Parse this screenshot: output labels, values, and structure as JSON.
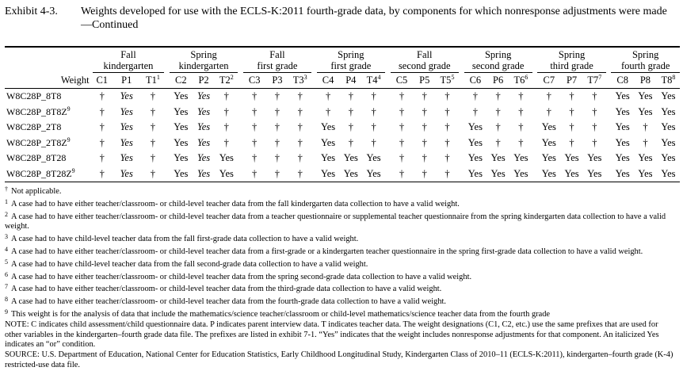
{
  "caption": {
    "exhibit": "Exhibit 4-3.",
    "title": "Weights developed for use with the ECLS-K:2011 fourth-grade data, by components for which nonresponse adjustments were made—Continued"
  },
  "groups": [
    {
      "line1": "Fall",
      "line2": "kindergarten"
    },
    {
      "line1": "Spring",
      "line2": "kindergarten"
    },
    {
      "line1": "Fall",
      "line2": "first grade"
    },
    {
      "line1": "Spring",
      "line2": "first grade"
    },
    {
      "line1": "Fall",
      "line2": "second grade"
    },
    {
      "line1": "Spring",
      "line2": "second grade"
    },
    {
      "line1": "Spring",
      "line2": "third grade"
    },
    {
      "line1": "Spring",
      "line2": "fourth grade"
    }
  ],
  "weight_label": "Weight",
  "sub_headers": [
    {
      "t": "C1",
      "sup": ""
    },
    {
      "t": "P1",
      "sup": ""
    },
    {
      "t": "T1",
      "sup": "1"
    },
    {
      "t": "C2",
      "sup": ""
    },
    {
      "t": "P2",
      "sup": ""
    },
    {
      "t": "T2",
      "sup": "2"
    },
    {
      "t": "C3",
      "sup": ""
    },
    {
      "t": "P3",
      "sup": ""
    },
    {
      "t": "T3",
      "sup": "3"
    },
    {
      "t": "C4",
      "sup": ""
    },
    {
      "t": "P4",
      "sup": ""
    },
    {
      "t": "T4",
      "sup": "4"
    },
    {
      "t": "C5",
      "sup": ""
    },
    {
      "t": "P5",
      "sup": ""
    },
    {
      "t": "T5",
      "sup": "5"
    },
    {
      "t": "C6",
      "sup": ""
    },
    {
      "t": "P6",
      "sup": ""
    },
    {
      "t": "T6",
      "sup": "6"
    },
    {
      "t": "C7",
      "sup": ""
    },
    {
      "t": "P7",
      "sup": ""
    },
    {
      "t": "T7",
      "sup": "7"
    },
    {
      "t": "C8",
      "sup": ""
    },
    {
      "t": "P8",
      "sup": ""
    },
    {
      "t": "T8",
      "sup": "8"
    }
  ],
  "rows": [
    {
      "name": "W8C28P_8T8",
      "sup": "",
      "cells": [
        "†",
        "Yes",
        "†",
        "Yes",
        "Yes",
        "†",
        "†",
        "†",
        "†",
        "†",
        "†",
        "†",
        "†",
        "†",
        "†",
        "†",
        "†",
        "†",
        "†",
        "†",
        "†",
        "Yes",
        "Yes",
        "Yes"
      ]
    },
    {
      "name": "W8C28P_8T8Z",
      "sup": "9",
      "cells": [
        "†",
        "Yes",
        "†",
        "Yes",
        "Yes",
        "†",
        "†",
        "†",
        "†",
        "†",
        "†",
        "†",
        "†",
        "†",
        "†",
        "†",
        "†",
        "†",
        "†",
        "†",
        "†",
        "Yes",
        "Yes",
        "Yes"
      ]
    },
    {
      "name": "W8C28P_2T8",
      "sup": "",
      "cells": [
        "†",
        "Yes",
        "†",
        "Yes",
        "Yes",
        "†",
        "†",
        "†",
        "†",
        "Yes",
        "†",
        "†",
        "†",
        "†",
        "†",
        "Yes",
        "†",
        "†",
        "Yes",
        "†",
        "†",
        "Yes",
        "†",
        "Yes"
      ]
    },
    {
      "name": "W8C28P_2T8Z",
      "sup": "9",
      "cells": [
        "†",
        "Yes",
        "†",
        "Yes",
        "Yes",
        "†",
        "†",
        "†",
        "†",
        "Yes",
        "†",
        "†",
        "†",
        "†",
        "†",
        "Yes",
        "†",
        "†",
        "Yes",
        "†",
        "†",
        "Yes",
        "†",
        "Yes"
      ]
    },
    {
      "name": "W8C28P_8T28",
      "sup": "",
      "cells": [
        "†",
        "Yes",
        "†",
        "Yes",
        "Yes",
        "Yes",
        "†",
        "†",
        "†",
        "Yes",
        "Yes",
        "Yes",
        "†",
        "†",
        "†",
        "Yes",
        "Yes",
        "Yes",
        "Yes",
        "Yes",
        "Yes",
        "Yes",
        "Yes",
        "Yes"
      ]
    },
    {
      "name": "W8C28P_8T28Z",
      "sup": "9",
      "cells": [
        "†",
        "Yes",
        "†",
        "Yes",
        "Yes",
        "Yes",
        "†",
        "†",
        "†",
        "Yes",
        "Yes",
        "Yes",
        "†",
        "†",
        "†",
        "Yes",
        "Yes",
        "Yes",
        "Yes",
        "Yes",
        "Yes",
        "Yes",
        "Yes",
        "Yes"
      ]
    }
  ],
  "italic_rule": {
    "C1": false,
    "P1": true,
    "P2": true,
    "C2": false
  },
  "notes": [
    {
      "mark": "†",
      "text": "Not applicable."
    },
    {
      "mark": "1",
      "text": "A case had to have either teacher/classroom- or child-level teacher data from the fall kindergarten data collection to have a valid weight."
    },
    {
      "mark": "2",
      "text": "A case had to have either teacher/classroom- or child-level teacher data from a teacher questionnaire or supplemental teacher questionnaire from the spring kindergarten data collection to have a valid weight."
    },
    {
      "mark": "3",
      "text": "A case had to have child-level teacher data from the fall first-grade data collection to have a valid weight."
    },
    {
      "mark": "4",
      "text": "A case had to have either teacher/classroom- or child-level teacher data from a first-grade or a kindergarten teacher questionnaire in the spring first-grade data collection to have a valid weight."
    },
    {
      "mark": "5",
      "text": "A case had to have child-level teacher data from the fall second-grade data collection to have a valid weight."
    },
    {
      "mark": "6",
      "text": "A case had to have either teacher/classroom- or child-level teacher data from the spring second-grade data collection to have a valid weight."
    },
    {
      "mark": "7",
      "text": "A case had to have either teacher/classroom- or child-level teacher data from the third-grade data collection to have a valid weight."
    },
    {
      "mark": "8",
      "text": "A case had to have either teacher/classroom- or child-level teacher data from the fourth-grade data collection to have a valid weight."
    },
    {
      "mark": "9",
      "text": "This weight is for the analysis of data that include the mathematics/science teacher/classroom or child-level mathematics/science teacher data from the fourth grade"
    },
    {
      "mark": "",
      "text": "NOTE: C indicates child assessment/child questionnaire data. P indicates parent interview data. T indicates teacher data. The weight designations (C1, C2, etc.) use the same prefixes that are used for other variables in the kindergarten–fourth grade data file. The prefixes are listed in exhibit 7-1. “Yes” indicates that the weight includes nonresponse adjustments for that component. An italicized Yes indicates an “or” condition."
    },
    {
      "mark": "",
      "text": "SOURCE: U.S. Department of Education, National Center for Education Statistics, Early Childhood Longitudinal Study, Kindergarten Class of 2010–11 (ECLS-K:2011), kindergarten–fourth grade (K-4) restricted-use data file."
    }
  ]
}
